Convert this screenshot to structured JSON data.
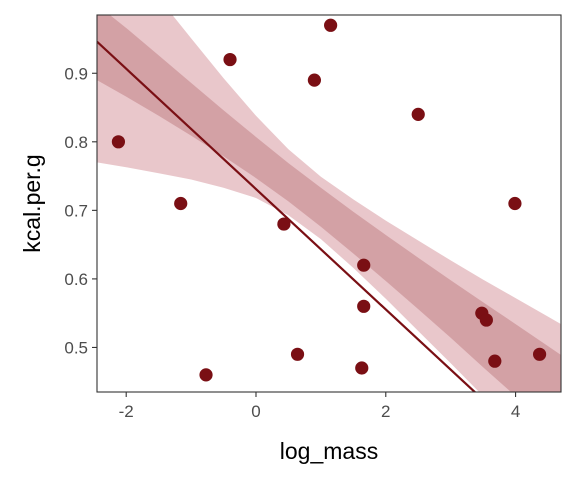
{
  "chart_data": {
    "type": "scatter",
    "xlabel": "log_mass",
    "ylabel": "kcal.per.g",
    "xlim": [
      -2.45,
      4.7
    ],
    "ylim": [
      0.435,
      0.985
    ],
    "x_ticks": [
      -2,
      0,
      2,
      4
    ],
    "y_ticks": [
      0.5,
      0.6,
      0.7,
      0.8,
      0.9
    ],
    "x_tick_labels": [
      "-2",
      "0",
      "2",
      "4"
    ],
    "y_tick_labels": [
      "0.5",
      "0.6",
      "0.7",
      "0.8",
      "0.9"
    ],
    "grid": false,
    "points": [
      {
        "x": -2.12,
        "y": 0.8
      },
      {
        "x": -1.16,
        "y": 0.71
      },
      {
        "x": -0.77,
        "y": 0.46
      },
      {
        "x": -0.4,
        "y": 0.92
      },
      {
        "x": 0.43,
        "y": 0.68
      },
      {
        "x": 0.64,
        "y": 0.49
      },
      {
        "x": 0.9,
        "y": 0.89
      },
      {
        "x": 1.15,
        "y": 0.97
      },
      {
        "x": 1.63,
        "y": 0.47
      },
      {
        "x": 1.66,
        "y": 0.62
      },
      {
        "x": 1.66,
        "y": 0.56
      },
      {
        "x": 2.5,
        "y": 0.84
      },
      {
        "x": 3.48,
        "y": 0.55
      },
      {
        "x": 3.55,
        "y": 0.54
      },
      {
        "x": 3.68,
        "y": 0.48
      },
      {
        "x": 3.99,
        "y": 0.71
      },
      {
        "x": 4.37,
        "y": 0.49
      }
    ],
    "fit_line": {
      "intercept": 0.731,
      "slope": -0.0878
    },
    "band_outer": {
      "x": [
        -2.45,
        -2.0,
        -1.5,
        -1.0,
        -0.5,
        0.0,
        0.5,
        1.0,
        1.5,
        2.0,
        2.5,
        3.0,
        3.5,
        4.0,
        4.5,
        4.7
      ],
      "lower": [
        0.77,
        0.763,
        0.754,
        0.745,
        0.733,
        0.718,
        0.693,
        0.658,
        0.616,
        0.571,
        0.524,
        0.477,
        0.429,
        0.38,
        0.331,
        0.312
      ],
      "upper": [
        1.122,
        1.069,
        1.01,
        0.951,
        0.893,
        0.838,
        0.789,
        0.749,
        0.716,
        0.685,
        0.656,
        0.627,
        0.599,
        0.572,
        0.545,
        0.534
      ]
    },
    "band_inner": {
      "x": [
        -2.45,
        -2.0,
        -1.5,
        -1.0,
        -0.5,
        0.0,
        0.5,
        1.0,
        1.5,
        2.0,
        2.5,
        3.0,
        3.5,
        4.0,
        4.5,
        4.7
      ],
      "lower": [
        0.89,
        0.866,
        0.838,
        0.809,
        0.779,
        0.747,
        0.713,
        0.676,
        0.637,
        0.597,
        0.556,
        0.514,
        0.471,
        0.429,
        0.386,
        0.368
      ],
      "upper": [
        1.0,
        0.966,
        0.926,
        0.886,
        0.846,
        0.807,
        0.769,
        0.733,
        0.698,
        0.664,
        0.631,
        0.598,
        0.566,
        0.534,
        0.502,
        0.489
      ]
    },
    "colors": {
      "points": "#7a0f14",
      "line": "#7a0f14",
      "band_outer": "#e9c7cb",
      "band_inner": "#cf9a9f",
      "panel_border": "#333333",
      "axis_text": "#4d4d4d"
    }
  }
}
